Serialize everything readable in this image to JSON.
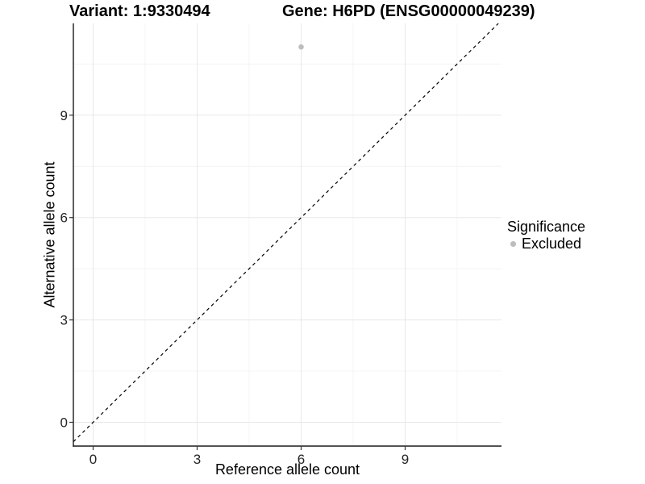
{
  "chart": {
    "title_left": "Variant: 1:9330494",
    "title_right": "Gene: H6PD (ENSG00000049239)",
    "xlabel": "Reference allele count",
    "ylabel": "Alternative allele count"
  },
  "legend": {
    "title": "Significance",
    "items": [
      {
        "label": "Excluded",
        "color": "#bdbdbd"
      }
    ]
  },
  "colors": {
    "point": "#bdbdbd",
    "grid_major": "#e8e8e8",
    "grid_minor": "#f4f4f4",
    "axis": "#1a1a1a",
    "tick_mark": "#333333",
    "tick_label": "#262626",
    "diagonal": "#000000"
  },
  "chart_data": {
    "type": "scatter",
    "title": "Variant: 1:9330494 — Gene: H6PD (ENSG00000049239)",
    "xlabel": "Reference allele count",
    "ylabel": "Alternative allele count",
    "x_ticks": [
      0,
      3,
      6,
      9
    ],
    "y_ticks": [
      0,
      3,
      6,
      9
    ],
    "xlim": [
      -0.6,
      11.8
    ],
    "ylim": [
      -0.7,
      11.7
    ],
    "grid": "major and minor gridlines, white background",
    "legend_position": "right",
    "legend_title": "Significance",
    "series": [
      {
        "name": "Excluded",
        "color": "#bdbdbd",
        "points": [
          {
            "x": 6,
            "y": 11
          }
        ]
      }
    ],
    "reference_line": {
      "kind": "identity",
      "slope": 1,
      "intercept": 0,
      "style": "dashed",
      "color": "#000000"
    }
  }
}
